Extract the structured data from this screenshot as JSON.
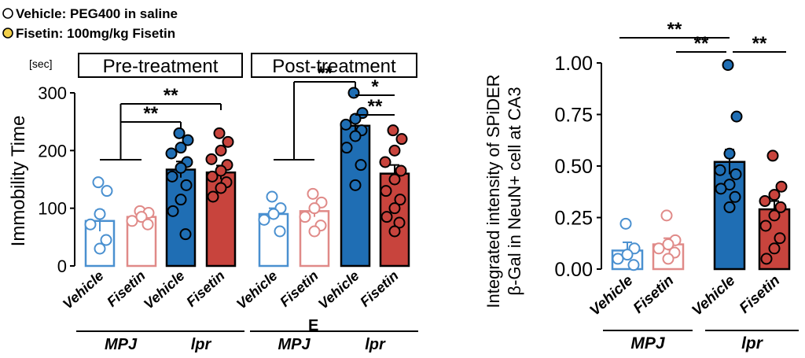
{
  "legend": {
    "items": [
      {
        "label": "Vehicle: PEG400 in saline",
        "fill": "#ffffff"
      },
      {
        "label": "Fisetin: 100mg/kg Fisetin",
        "fill": "#f2d04a"
      }
    ]
  },
  "colors": {
    "blue": "#1f6eb4",
    "red": "#c8443d",
    "blue_open": "#4a90d0",
    "red_open": "#e08a88"
  },
  "stray_label": "E",
  "chart_data": [
    {
      "type": "bar",
      "ylabel": "Immobility Time",
      "unit_label": "[sec]",
      "ylim": [
        0,
        300
      ],
      "yticks": [
        0,
        100,
        200,
        300
      ],
      "panels": [
        {
          "title": "Pre-treatment",
          "categories": [
            "Vehicle",
            "Fisetin",
            "Vehicle",
            "Fisetin"
          ],
          "groups": [
            {
              "label": "MPJ",
              "span": [
                0,
                1
              ]
            },
            {
              "label": "lpr",
              "span": [
                2,
                3
              ]
            }
          ],
          "values": [
            78,
            85,
            167,
            162
          ],
          "errors": [
            18,
            6,
            14,
            12
          ],
          "points": [
            [
              145,
              130,
              90,
              72,
              45,
              30
            ],
            [
              95,
              92,
              85,
              78,
              72
            ],
            [
              230,
              218,
              205,
              195,
              180,
              170,
              155,
              140,
              115,
              95,
              55
            ],
            [
              230,
              215,
              200,
              185,
              175,
              165,
              155,
              145,
              135,
              120
            ]
          ],
          "styles": [
            "open-blue",
            "open-red",
            "filled-blue",
            "filled-red"
          ],
          "significance": [
            {
              "label": "**",
              "from": "MPJ",
              "to": 2
            },
            {
              "label": "**",
              "from": "MPJ",
              "to": 3
            }
          ]
        },
        {
          "title": "Post-treatment",
          "categories": [
            "Vehicle",
            "Fisetin",
            "Vehicle",
            "Fisetin"
          ],
          "groups": [
            {
              "label": "MPJ",
              "span": [
                0,
                1
              ]
            },
            {
              "label": "lpr",
              "span": [
                2,
                3
              ]
            }
          ],
          "values": [
            90,
            95,
            243,
            160
          ],
          "errors": [
            10,
            10,
            18,
            15
          ],
          "points": [
            [
              120,
              100,
              90,
              80,
              60
            ],
            [
              125,
              110,
              100,
              85,
              70,
              60
            ],
            [
              300,
              265,
              255,
              245,
              235,
              225,
              205,
              175,
              140
            ],
            [
              235,
              220,
              200,
              180,
              165,
              150,
              130,
              115,
              100,
              85,
              75,
              60
            ]
          ],
          "styles": [
            "open-blue",
            "open-red",
            "filled-blue",
            "filled-red"
          ],
          "significance": [
            {
              "label": "**",
              "from": "MPJ",
              "to": 2
            },
            {
              "label": "*",
              "from": 2,
              "to": 3
            },
            {
              "label": "**",
              "from": 2,
              "to": 3
            }
          ]
        }
      ]
    },
    {
      "type": "bar",
      "ylabel": "Integrated intensity of SPiDER β-Gal in NeuN+ cell at CA3",
      "ylabel_lines": [
        "Integrated intensity of SPiDER",
        "β-Gal in NeuN+ cell at CA3"
      ],
      "ylim": [
        0,
        1.0
      ],
      "yticks": [
        "0.00",
        "0.25",
        "0.50",
        "0.75",
        "1.00"
      ],
      "categories": [
        "Vehicle",
        "Fisetin",
        "Vehicle",
        "Fisetin"
      ],
      "groups": [
        {
          "label": "MPJ",
          "span": [
            0,
            1
          ]
        },
        {
          "label": "lpr",
          "span": [
            2,
            3
          ]
        }
      ],
      "values": [
        0.09,
        0.12,
        0.52,
        0.29
      ],
      "errors": [
        0.04,
        0.03,
        0.06,
        0.04
      ],
      "points": [
        [
          0.22,
          0.1,
          0.07,
          0.05,
          0.02
        ],
        [
          0.26,
          0.14,
          0.12,
          0.1,
          0.08,
          0.05
        ],
        [
          0.99,
          0.74,
          0.56,
          0.48,
          0.46,
          0.41,
          0.39,
          0.35,
          0.3
        ],
        [
          0.55,
          0.4,
          0.36,
          0.33,
          0.3,
          0.26,
          0.21,
          0.15,
          0.1,
          0.05
        ]
      ],
      "styles": [
        "open-blue",
        "open-red",
        "filled-blue",
        "filled-red"
      ],
      "significance": [
        {
          "label": "**",
          "from": 0,
          "to": 2
        },
        {
          "label": "**",
          "from": 1,
          "to": 2
        },
        {
          "label": "**",
          "from": 2,
          "to": 3
        }
      ]
    }
  ]
}
